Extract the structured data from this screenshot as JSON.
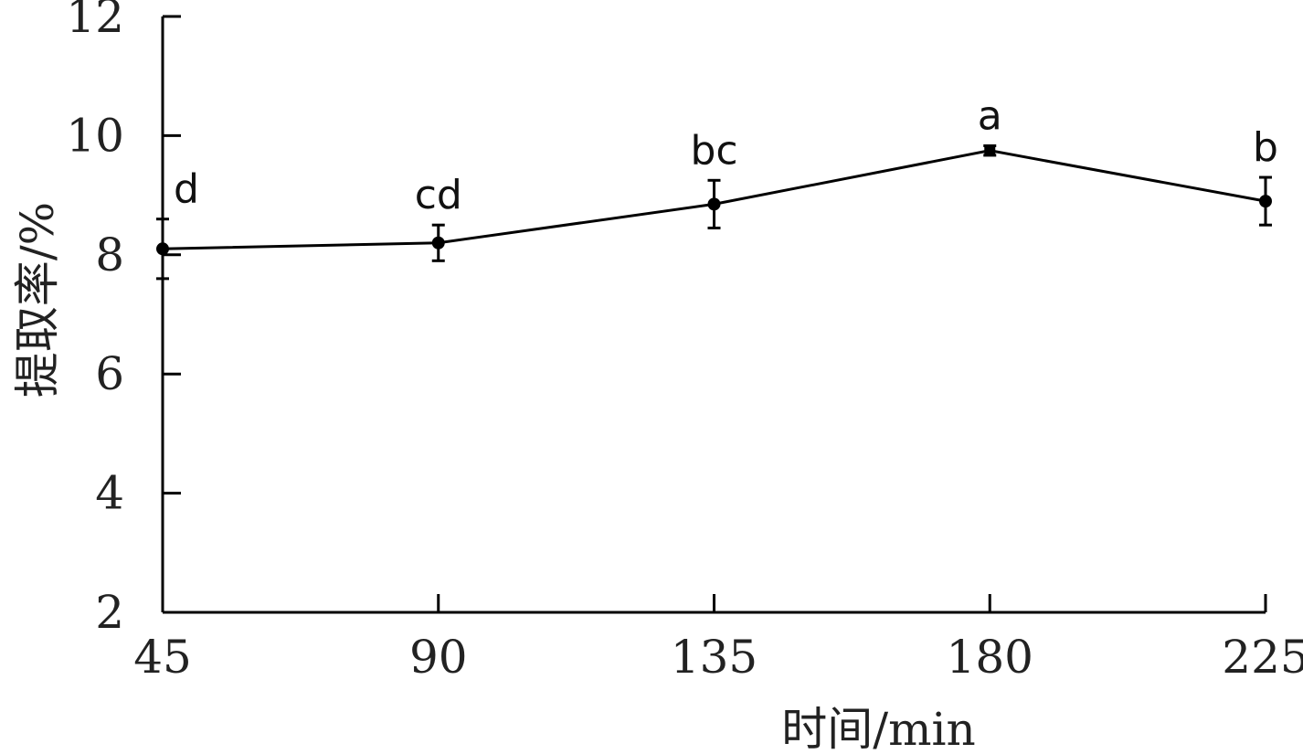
{
  "chart_data": {
    "type": "line",
    "xlabel": "时间/min",
    "ylabel": "提取率/%",
    "x": [
      45,
      90,
      135,
      180,
      225
    ],
    "xticks": [
      "45",
      "90",
      "135",
      "180",
      "225"
    ],
    "yticks": [
      "2",
      "4",
      "6",
      "8",
      "10",
      "12"
    ],
    "xlim": [
      45,
      225
    ],
    "ylim": [
      2,
      12
    ],
    "grid": false,
    "series": [
      {
        "values": [
          8.1,
          8.2,
          8.85,
          9.75,
          8.9
        ],
        "errors": [
          0.5,
          0.3,
          0.4,
          0.08,
          0.4
        ],
        "labels": [
          "d",
          "cd",
          "bc",
          "a",
          "b"
        ],
        "markers": [
          "circle",
          "circle",
          "circle",
          "square",
          "circle"
        ],
        "color": "#000000"
      }
    ]
  }
}
